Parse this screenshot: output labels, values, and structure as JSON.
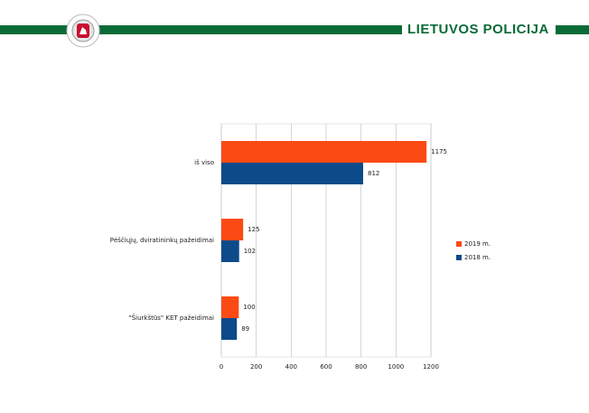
{
  "header": {
    "title": "LIETUVOS POLICIJA"
  },
  "chart_data": {
    "type": "bar",
    "orientation": "horizontal",
    "categories": [
      "iš viso",
      "Pėščiųjų, dviratininkų pažeidimai",
      "\"Šiurkštūs\" KET pažeidimai"
    ],
    "series": [
      {
        "name": "2019 m.",
        "color": "#fc4a14",
        "values": [
          1175,
          125,
          100
        ]
      },
      {
        "name": "2018 m.",
        "color": "#0c4a8a",
        "values": [
          812,
          102,
          89
        ]
      }
    ],
    "xlim": [
      0,
      1200
    ],
    "xticks": [
      0,
      200,
      400,
      600,
      800,
      1000,
      1200
    ],
    "grid": true,
    "legend": "right"
  }
}
